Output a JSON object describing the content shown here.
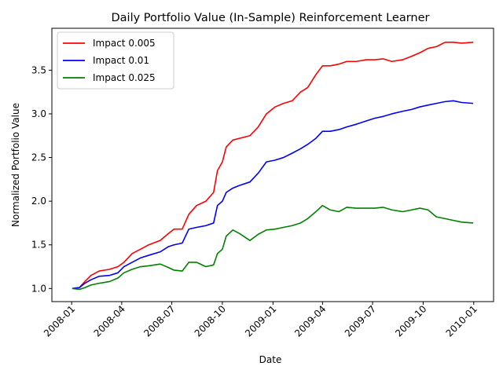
{
  "chart_data": {
    "type": "line",
    "title": "Daily Portfolio Value (In-Sample) Reinforcement Learner",
    "xlabel": "Date",
    "ylabel": "Normalized Portfolio Value",
    "xlim": [
      "2007-11-26",
      "2010-02-06"
    ],
    "ylim": [
      0.85,
      3.98
    ],
    "x_ticks": [
      "2008-01",
      "2008-04",
      "2008-07",
      "2008-10",
      "2009-01",
      "2009-04",
      "2009-07",
      "2009-10",
      "2010-01"
    ],
    "y_ticks": [
      "1.0",
      "1.5",
      "2.0",
      "2.5",
      "3.0",
      "3.5"
    ],
    "grid": false,
    "legend_position": "top-left",
    "series": [
      {
        "name": "Impact 0.005",
        "color": "#ff0000",
        "points": [
          [
            "2008-01-02",
            1.0
          ],
          [
            "2008-01-15",
            1.01
          ],
          [
            "2008-01-25",
            1.08
          ],
          [
            "2008-02-05",
            1.15
          ],
          [
            "2008-02-20",
            1.2
          ],
          [
            "2008-03-10",
            1.22
          ],
          [
            "2008-03-25",
            1.25
          ],
          [
            "2008-04-05",
            1.3
          ],
          [
            "2008-04-20",
            1.4
          ],
          [
            "2008-05-05",
            1.45
          ],
          [
            "2008-05-20",
            1.5
          ],
          [
            "2008-06-10",
            1.55
          ],
          [
            "2008-06-25",
            1.63
          ],
          [
            "2008-07-05",
            1.68
          ],
          [
            "2008-07-20",
            1.68
          ],
          [
            "2008-08-01",
            1.85
          ],
          [
            "2008-08-15",
            1.95
          ],
          [
            "2008-09-01",
            2.0
          ],
          [
            "2008-09-15",
            2.1
          ],
          [
            "2008-09-22",
            2.35
          ],
          [
            "2008-10-01",
            2.45
          ],
          [
            "2008-10-08",
            2.62
          ],
          [
            "2008-10-20",
            2.7
          ],
          [
            "2008-11-01",
            2.72
          ],
          [
            "2008-11-20",
            2.75
          ],
          [
            "2008-12-05",
            2.85
          ],
          [
            "2008-12-20",
            3.0
          ],
          [
            "2009-01-05",
            3.08
          ],
          [
            "2009-01-20",
            3.12
          ],
          [
            "2009-02-05",
            3.15
          ],
          [
            "2009-02-20",
            3.25
          ],
          [
            "2009-03-05",
            3.3
          ],
          [
            "2009-03-20",
            3.45
          ],
          [
            "2009-04-01",
            3.55
          ],
          [
            "2009-04-15",
            3.55
          ],
          [
            "2009-05-01",
            3.57
          ],
          [
            "2009-05-15",
            3.6
          ],
          [
            "2009-06-01",
            3.6
          ],
          [
            "2009-06-20",
            3.62
          ],
          [
            "2009-07-05",
            3.62
          ],
          [
            "2009-07-20",
            3.63
          ],
          [
            "2009-08-05",
            3.6
          ],
          [
            "2009-08-25",
            3.62
          ],
          [
            "2009-09-10",
            3.66
          ],
          [
            "2009-09-25",
            3.7
          ],
          [
            "2009-10-10",
            3.75
          ],
          [
            "2009-10-25",
            3.77
          ],
          [
            "2009-11-10",
            3.82
          ],
          [
            "2009-11-25",
            3.82
          ],
          [
            "2009-12-10",
            3.81
          ],
          [
            "2009-12-31",
            3.82
          ]
        ]
      },
      {
        "name": "Impact 0.01",
        "color": "#0000ff",
        "points": [
          [
            "2008-01-02",
            1.0
          ],
          [
            "2008-01-15",
            1.01
          ],
          [
            "2008-01-25",
            1.06
          ],
          [
            "2008-02-05",
            1.1
          ],
          [
            "2008-02-20",
            1.14
          ],
          [
            "2008-03-10",
            1.15
          ],
          [
            "2008-03-25",
            1.18
          ],
          [
            "2008-04-05",
            1.25
          ],
          [
            "2008-04-20",
            1.3
          ],
          [
            "2008-05-05",
            1.35
          ],
          [
            "2008-05-20",
            1.38
          ],
          [
            "2008-06-10",
            1.42
          ],
          [
            "2008-06-25",
            1.48
          ],
          [
            "2008-07-05",
            1.5
          ],
          [
            "2008-07-20",
            1.52
          ],
          [
            "2008-08-01",
            1.68
          ],
          [
            "2008-08-15",
            1.7
          ],
          [
            "2008-09-01",
            1.72
          ],
          [
            "2008-09-15",
            1.75
          ],
          [
            "2008-09-22",
            1.95
          ],
          [
            "2008-10-01",
            2.0
          ],
          [
            "2008-10-08",
            2.1
          ],
          [
            "2008-10-20",
            2.15
          ],
          [
            "2008-11-01",
            2.18
          ],
          [
            "2008-11-20",
            2.22
          ],
          [
            "2008-12-05",
            2.32
          ],
          [
            "2008-12-20",
            2.45
          ],
          [
            "2009-01-05",
            2.47
          ],
          [
            "2009-01-20",
            2.5
          ],
          [
            "2009-02-05",
            2.55
          ],
          [
            "2009-02-20",
            2.6
          ],
          [
            "2009-03-05",
            2.65
          ],
          [
            "2009-03-20",
            2.72
          ],
          [
            "2009-04-01",
            2.8
          ],
          [
            "2009-04-15",
            2.8
          ],
          [
            "2009-05-01",
            2.82
          ],
          [
            "2009-05-15",
            2.85
          ],
          [
            "2009-06-01",
            2.88
          ],
          [
            "2009-06-20",
            2.92
          ],
          [
            "2009-07-05",
            2.95
          ],
          [
            "2009-07-20",
            2.97
          ],
          [
            "2009-08-05",
            3.0
          ],
          [
            "2009-08-25",
            3.03
          ],
          [
            "2009-09-10",
            3.05
          ],
          [
            "2009-09-25",
            3.08
          ],
          [
            "2009-10-10",
            3.1
          ],
          [
            "2009-10-25",
            3.12
          ],
          [
            "2009-11-10",
            3.14
          ],
          [
            "2009-11-25",
            3.15
          ],
          [
            "2009-12-10",
            3.13
          ],
          [
            "2009-12-31",
            3.12
          ]
        ]
      },
      {
        "name": "Impact 0.025",
        "color": "#008000",
        "points": [
          [
            "2008-01-02",
            1.0
          ],
          [
            "2008-01-15",
            0.99
          ],
          [
            "2008-01-25",
            1.01
          ],
          [
            "2008-02-05",
            1.04
          ],
          [
            "2008-02-20",
            1.06
          ],
          [
            "2008-03-10",
            1.08
          ],
          [
            "2008-03-25",
            1.12
          ],
          [
            "2008-04-05",
            1.18
          ],
          [
            "2008-04-20",
            1.22
          ],
          [
            "2008-05-05",
            1.25
          ],
          [
            "2008-05-20",
            1.26
          ],
          [
            "2008-06-10",
            1.28
          ],
          [
            "2008-06-25",
            1.24
          ],
          [
            "2008-07-05",
            1.21
          ],
          [
            "2008-07-20",
            1.2
          ],
          [
            "2008-08-01",
            1.3
          ],
          [
            "2008-08-15",
            1.3
          ],
          [
            "2008-09-01",
            1.25
          ],
          [
            "2008-09-15",
            1.27
          ],
          [
            "2008-09-22",
            1.4
          ],
          [
            "2008-10-01",
            1.45
          ],
          [
            "2008-10-08",
            1.6
          ],
          [
            "2008-10-20",
            1.67
          ],
          [
            "2008-11-01",
            1.63
          ],
          [
            "2008-11-20",
            1.55
          ],
          [
            "2008-12-05",
            1.62
          ],
          [
            "2008-12-20",
            1.67
          ],
          [
            "2009-01-05",
            1.68
          ],
          [
            "2009-01-20",
            1.7
          ],
          [
            "2009-02-05",
            1.72
          ],
          [
            "2009-02-20",
            1.75
          ],
          [
            "2009-03-05",
            1.8
          ],
          [
            "2009-03-20",
            1.88
          ],
          [
            "2009-04-01",
            1.95
          ],
          [
            "2009-04-15",
            1.9
          ],
          [
            "2009-05-01",
            1.88
          ],
          [
            "2009-05-15",
            1.93
          ],
          [
            "2009-06-01",
            1.92
          ],
          [
            "2009-06-20",
            1.92
          ],
          [
            "2009-07-05",
            1.92
          ],
          [
            "2009-07-20",
            1.93
          ],
          [
            "2009-08-05",
            1.9
          ],
          [
            "2009-08-25",
            1.88
          ],
          [
            "2009-09-10",
            1.9
          ],
          [
            "2009-09-25",
            1.92
          ],
          [
            "2009-10-10",
            1.9
          ],
          [
            "2009-10-25",
            1.82
          ],
          [
            "2009-11-10",
            1.8
          ],
          [
            "2009-11-25",
            1.78
          ],
          [
            "2009-12-10",
            1.76
          ],
          [
            "2009-12-31",
            1.75
          ]
        ]
      }
    ]
  }
}
